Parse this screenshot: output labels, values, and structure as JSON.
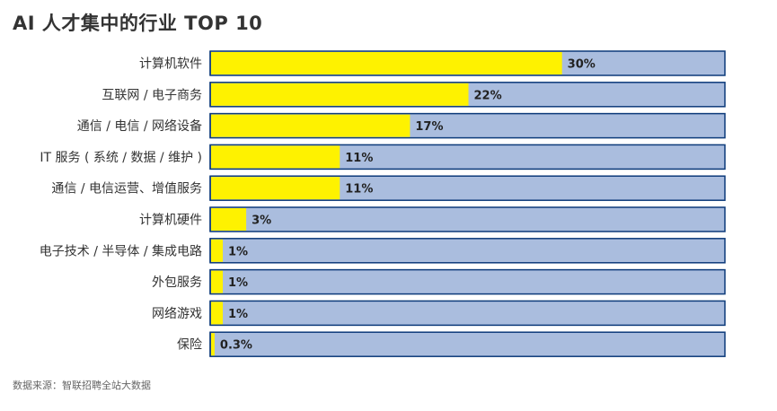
{
  "title": "AI 人才集中的行业 TOP 10",
  "source": "数据来源：智联招聘全站大数据",
  "colors": {
    "fill": "#fef200",
    "track": "#aabdde",
    "border": "#0c3a7a",
    "label": "#333333",
    "value_label": "#222222"
  },
  "chart_data": {
    "type": "bar",
    "orientation": "horizontal",
    "stacked_on_track": true,
    "categories": [
      "计算机软件",
      "互联网 / 电子商务",
      "通信 / 电信 / 网络设备",
      "IT 服务 ( 系统 / 数据 / 维护 )",
      "通信 / 电信运营、增值服务",
      "计算机硬件",
      "电子技术 / 半导体 / 集成电路",
      "外包服务",
      "网络游戏",
      "保险"
    ],
    "values": [
      30,
      22,
      17,
      11,
      11,
      3,
      1,
      1,
      1,
      0.3
    ],
    "value_labels": [
      "30%",
      "22%",
      "17%",
      "11%",
      "11%",
      "3%",
      "1%",
      "1%",
      "1%",
      "0.3%"
    ],
    "xlim": [
      0,
      44
    ],
    "unit": "%",
    "grid": false,
    "legend": "none"
  }
}
